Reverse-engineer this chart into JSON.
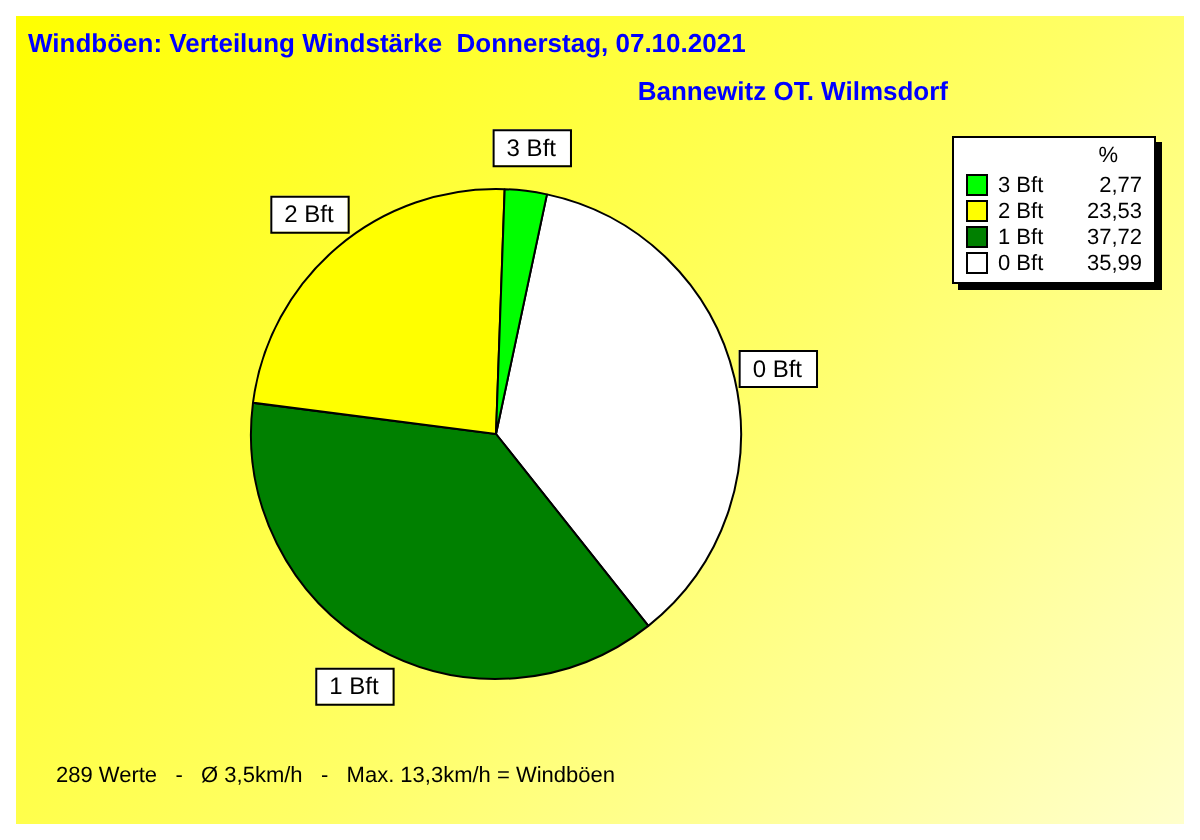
{
  "chart_data": {
    "type": "pie",
    "title": "Windböen: Verteilung Windstärke  Donnerstag, 07.10.2021",
    "subtitle": "Bannewitz OT. Wilmsdorf",
    "legend_title": "%",
    "categories": [
      "3 Bft",
      "2 Bft",
      "1 Bft",
      "0 Bft"
    ],
    "values": [
      2.77,
      23.53,
      37.72,
      35.99
    ],
    "value_labels": [
      "2,77",
      "23,53",
      "37,72",
      "35,99"
    ],
    "colors": [
      "#00ff00",
      "#ffff00",
      "#008000",
      "#ffffff"
    ],
    "legend": "top right",
    "annotations": [
      "289 Werte   -   Ø 3,5km/h   -   Max. 13,3km/h = Windböen"
    ]
  }
}
